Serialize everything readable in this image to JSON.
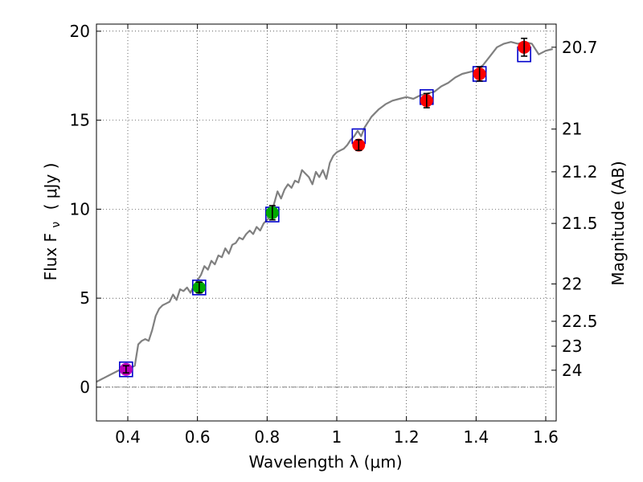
{
  "chart_data": {
    "type": "scatter",
    "xlabel": "Wavelength  λ (μm)",
    "ylabel_left": "Flux  F",
    "ylabel_left_sub": "ν",
    "ylabel_left_unit": "( μJy )",
    "ylabel_right": "Magnitude (AB)",
    "xlim": [
      0.31,
      1.63
    ],
    "ylim": [
      -1.9,
      20.4
    ],
    "grid": true,
    "x_ticks": [
      0.4,
      0.6,
      0.8,
      1.0,
      1.2,
      1.4,
      1.6
    ],
    "x_tick_labels": [
      "0.4",
      "0.6",
      "0.8",
      "1",
      "1.2",
      "1.4",
      "1.6"
    ],
    "y_ticks": [
      0,
      5,
      10,
      15,
      20
    ],
    "y_tick_labels": [
      "0",
      "5",
      "10",
      "15",
      "20"
    ],
    "mag_ticks": [
      {
        "label": "20.7",
        "flux": 19.1
      },
      {
        "label": "21",
        "flux": 14.5
      },
      {
        "label": "21.2",
        "flux": 12.1
      },
      {
        "label": "21.5",
        "flux": 9.2
      },
      {
        "label": "22",
        "flux": 5.8
      },
      {
        "label": "22.5",
        "flux": 3.7
      },
      {
        "label": "23",
        "flux": 2.3
      },
      {
        "label": "24",
        "flux": 0.95
      }
    ],
    "zero_line": 0,
    "model_spectrum": {
      "color": "#808080",
      "x": [
        0.31,
        0.33,
        0.35,
        0.37,
        0.38,
        0.39,
        0.4,
        0.41,
        0.42,
        0.43,
        0.44,
        0.45,
        0.46,
        0.47,
        0.48,
        0.49,
        0.5,
        0.51,
        0.52,
        0.53,
        0.54,
        0.55,
        0.56,
        0.57,
        0.58,
        0.59,
        0.6,
        0.61,
        0.62,
        0.63,
        0.64,
        0.65,
        0.66,
        0.67,
        0.68,
        0.69,
        0.7,
        0.71,
        0.72,
        0.73,
        0.74,
        0.75,
        0.76,
        0.77,
        0.78,
        0.79,
        0.8,
        0.81,
        0.82,
        0.83,
        0.84,
        0.85,
        0.86,
        0.87,
        0.88,
        0.89,
        0.9,
        0.91,
        0.92,
        0.93,
        0.94,
        0.95,
        0.96,
        0.97,
        0.98,
        0.99,
        1.0,
        1.01,
        1.02,
        1.03,
        1.04,
        1.05,
        1.06,
        1.07,
        1.08,
        1.09,
        1.1,
        1.12,
        1.14,
        1.16,
        1.18,
        1.2,
        1.22,
        1.24,
        1.26,
        1.28,
        1.3,
        1.32,
        1.34,
        1.36,
        1.38,
        1.4,
        1.42,
        1.44,
        1.46,
        1.48,
        1.5,
        1.52,
        1.54,
        1.56,
        1.58,
        1.6,
        1.62
      ],
      "y": [
        0.3,
        0.5,
        0.7,
        0.9,
        1.0,
        1.0,
        1.1,
        1.1,
        1.2,
        2.4,
        2.6,
        2.7,
        2.6,
        3.2,
        4.0,
        4.4,
        4.6,
        4.7,
        4.8,
        5.2,
        4.9,
        5.5,
        5.4,
        5.6,
        5.3,
        5.7,
        6.0,
        6.3,
        6.8,
        6.6,
        7.1,
        6.9,
        7.4,
        7.3,
        7.8,
        7.5,
        8.0,
        8.1,
        8.4,
        8.3,
        8.6,
        8.8,
        8.6,
        9.0,
        8.8,
        9.2,
        9.4,
        9.6,
        10.3,
        11.0,
        10.6,
        11.1,
        11.4,
        11.2,
        11.6,
        11.5,
        12.2,
        12.0,
        11.8,
        11.4,
        12.1,
        11.8,
        12.2,
        11.7,
        12.6,
        13.0,
        13.2,
        13.3,
        13.4,
        13.6,
        13.9,
        14.1,
        14.4,
        14.1,
        14.6,
        14.9,
        15.2,
        15.6,
        15.9,
        16.1,
        16.2,
        16.3,
        16.2,
        16.4,
        16.5,
        16.6,
        16.9,
        17.1,
        17.4,
        17.6,
        17.7,
        17.8,
        18.1,
        18.6,
        19.1,
        19.3,
        19.4,
        19.3,
        19.4,
        19.3,
        18.7,
        18.9,
        19.0
      ]
    },
    "series": [
      {
        "name": "model_photometry",
        "marker": "open-square",
        "color": "#0000cc",
        "x": [
          0.395,
          0.605,
          0.815,
          1.063,
          1.258,
          1.41,
          1.538
        ],
        "y": [
          1.0,
          5.6,
          9.7,
          14.1,
          16.3,
          17.6,
          18.7
        ]
      },
      {
        "name": "observed_red",
        "marker": "filled-circle",
        "color": "#ff0000",
        "x": [
          1.063,
          1.258,
          1.41,
          1.538
        ],
        "y": [
          13.6,
          16.1,
          17.6,
          19.1
        ],
        "err": [
          0.3,
          0.4,
          0.4,
          0.5
        ]
      },
      {
        "name": "observed_green",
        "marker": "filled-circle",
        "color": "#00aa00",
        "x": [
          0.605,
          0.815
        ],
        "y": [
          5.6,
          9.8
        ],
        "err": [
          0.3,
          0.4
        ]
      },
      {
        "name": "observed_magenta",
        "marker": "filled-circle",
        "color": "#bb00bb",
        "x": [
          0.395
        ],
        "y": [
          1.0
        ],
        "err": [
          0.2
        ]
      }
    ]
  }
}
